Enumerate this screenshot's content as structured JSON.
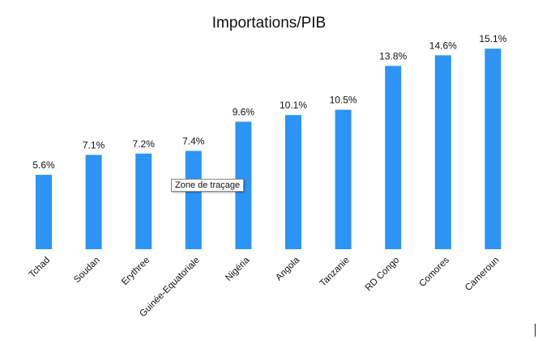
{
  "chart_data": {
    "type": "bar",
    "title": "Importations/PIB",
    "xlabel": "",
    "ylabel": "",
    "categories": [
      "Tchad",
      "Soudan",
      "Erythree",
      "Guinée-Equatoriale",
      "Nigéria",
      "Angola",
      "Tanzanie",
      "RD Congo",
      "Comores",
      "Cameroun"
    ],
    "values": [
      5.6,
      7.1,
      7.2,
      7.4,
      9.6,
      10.1,
      10.5,
      13.8,
      14.6,
      15.1
    ],
    "value_labels": [
      "5.6%",
      "7.1%",
      "7.2%",
      "7.4%",
      "9.6%",
      "10.1%",
      "10.5%",
      "13.8%",
      "14.6%",
      "15.1%"
    ],
    "ylim": [
      0,
      16
    ],
    "grid": false,
    "legend": "none",
    "bar_color": "#2b94f4"
  },
  "tooltip": {
    "text": "Zone de traçage"
  }
}
